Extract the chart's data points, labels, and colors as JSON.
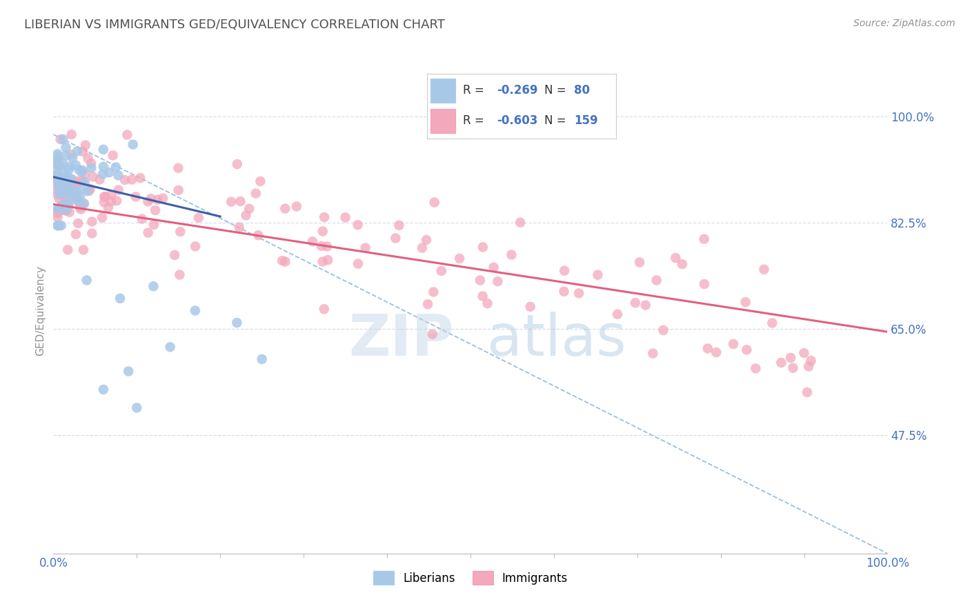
{
  "title": "LIBERIAN VS IMMIGRANTS GED/EQUIVALENCY CORRELATION CHART",
  "source_text": "Source: ZipAtlas.com",
  "ylabel": "GED/Equivalency",
  "xmin": 0.0,
  "xmax": 1.0,
  "ymin": 0.28,
  "ymax": 1.08,
  "right_yticks": [
    0.475,
    0.65,
    0.825,
    1.0
  ],
  "right_yticklabels": [
    "47.5%",
    "65.0%",
    "82.5%",
    "100.0%"
  ],
  "liberian_color": "#a8c8e8",
  "immigrant_color": "#f4a8bc",
  "liberian_line_color": "#3a5fa8",
  "immigrant_line_color": "#e06080",
  "dashed_line_color": "#90b8d8",
  "background_color": "#ffffff",
  "grid_color": "#d8d8e8",
  "watermark_color": "#c4d8ec",
  "title_color": "#505050",
  "title_fontsize": 13,
  "axis_label_color": "#909090",
  "tick_color": "#4472c4",
  "source_color": "#909090",
  "legend_box_color": "#e8e8f0",
  "liberian_N": 80,
  "immigrant_N": 159
}
